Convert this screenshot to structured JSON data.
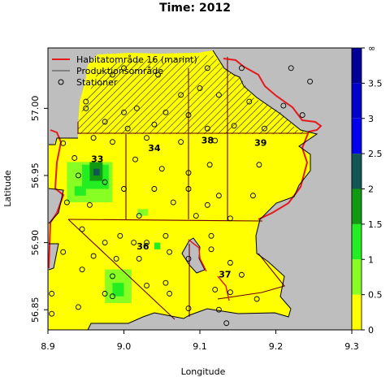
{
  "chart_data": {
    "type": "heatmap",
    "title": "Time: 2012",
    "xlabel": "Longitude",
    "ylabel": "Latitude",
    "xlim": [
      8.9,
      9.3
    ],
    "ylim": [
      56.835,
      57.045
    ],
    "x_ticks": [
      8.9,
      9.0,
      9.1,
      9.2,
      9.3
    ],
    "x_tick_labels": [
      "8.9",
      "9.0",
      "9.1",
      "9.2",
      "9.3"
    ],
    "y_ticks": [
      56.85,
      56.9,
      56.95,
      57.0
    ],
    "y_tick_labels": [
      "56.85",
      "56.90",
      "56.95",
      "57.00"
    ],
    "legend": {
      "position": "top-left",
      "items": [
        {
          "label": "Habitatområde 16 (marint)",
          "symbol": "line",
          "color": "#e41a1c"
        },
        {
          "label": "Produktionsområde",
          "symbol": "line",
          "color": "#444444"
        },
        {
          "label": "Stationer",
          "symbol": "circle",
          "color": "#000000"
        }
      ]
    },
    "colorbar": {
      "tick_labels": [
        "0",
        "0.5",
        "1",
        "1.5",
        "2",
        "2.5",
        "3",
        "3.5",
        "∞"
      ],
      "bins": [
        {
          "from": 0.0,
          "to": 0.5,
          "color": "#ffff00"
        },
        {
          "from": 0.5,
          "to": 1.0,
          "color": "#88ff22"
        },
        {
          "from": 1.0,
          "to": 1.5,
          "color": "#22ee22"
        },
        {
          "from": 1.5,
          "to": 2.0,
          "color": "#119911"
        },
        {
          "from": 2.0,
          "to": 2.5,
          "color": "#115555"
        },
        {
          "from": 2.5,
          "to": 3.0,
          "color": "#0000ee"
        },
        {
          "from": 3.0,
          "to": 3.5,
          "color": "#0000cc"
        },
        {
          "from": 3.5,
          "to": "inf",
          "color": "#000099"
        }
      ]
    },
    "area_labels": [
      {
        "text": "33",
        "x": 8.965,
        "y": 56.96
      },
      {
        "text": "34",
        "x": 9.04,
        "y": 56.968
      },
      {
        "text": "38",
        "x": 9.11,
        "y": 56.974
      },
      {
        "text": "39",
        "x": 9.18,
        "y": 56.972
      },
      {
        "text": "36",
        "x": 9.025,
        "y": 56.895
      },
      {
        "text": "37",
        "x": 9.133,
        "y": 56.874
      }
    ],
    "patches": [
      {
        "x0": 8.925,
        "x1": 8.985,
        "y0": 56.93,
        "y1": 56.96,
        "value": 0.8
      },
      {
        "x0": 8.945,
        "x1": 8.98,
        "y0": 56.94,
        "y1": 56.958,
        "value": 1.2
      },
      {
        "x0": 8.955,
        "x1": 8.972,
        "y0": 56.946,
        "y1": 56.96,
        "value": 1.7
      },
      {
        "x0": 8.96,
        "x1": 8.968,
        "y0": 56.95,
        "y1": 56.955,
        "value": 2.2
      },
      {
        "x0": 8.935,
        "x1": 8.95,
        "y0": 56.935,
        "y1": 56.942,
        "value": 1.1
      },
      {
        "x0": 9.018,
        "x1": 9.032,
        "y0": 56.92,
        "y1": 56.925,
        "value": 0.8
      },
      {
        "x0": 9.04,
        "x1": 9.048,
        "y0": 56.895,
        "y1": 56.9,
        "value": 1.1
      },
      {
        "x0": 8.975,
        "x1": 9.01,
        "y0": 56.855,
        "y1": 56.88,
        "value": 0.8
      },
      {
        "x0": 8.985,
        "x1": 9.0,
        "y0": 56.86,
        "y1": 56.87,
        "value": 1.1
      }
    ],
    "stations": [
      [
        8.95,
        57.005
      ],
      [
        8.985,
        57.025
      ],
      [
        9.0,
        57.03
      ],
      [
        9.045,
        57.025
      ],
      [
        9.11,
        57.03
      ],
      [
        9.155,
        57.03
      ],
      [
        9.22,
        57.03
      ],
      [
        9.245,
        57.02
      ],
      [
        8.95,
        57.0
      ],
      [
        9.0,
        56.997
      ],
      [
        9.017,
        57.0
      ],
      [
        9.055,
        56.997
      ],
      [
        9.075,
        57.01
      ],
      [
        9.1,
        57.015
      ],
      [
        9.125,
        57.01
      ],
      [
        9.165,
        57.005
      ],
      [
        9.21,
        57.002
      ],
      [
        8.975,
        56.99
      ],
      [
        9.005,
        56.985
      ],
      [
        9.04,
        56.988
      ],
      [
        9.085,
        56.995
      ],
      [
        9.11,
        56.985
      ],
      [
        9.145,
        56.987
      ],
      [
        9.185,
        56.985
      ],
      [
        9.235,
        56.995
      ],
      [
        8.92,
        56.974
      ],
      [
        8.96,
        56.978
      ],
      [
        8.985,
        56.975
      ],
      [
        9.03,
        56.978
      ],
      [
        9.075,
        56.975
      ],
      [
        9.12,
        56.976
      ],
      [
        8.935,
        56.963
      ],
      [
        9.015,
        56.962
      ],
      [
        9.05,
        56.955
      ],
      [
        9.085,
        56.952
      ],
      [
        9.113,
        56.958
      ],
      [
        9.178,
        56.958
      ],
      [
        8.94,
        56.95
      ],
      [
        8.975,
        56.945
      ],
      [
        9.0,
        56.94
      ],
      [
        9.04,
        56.94
      ],
      [
        9.085,
        56.94
      ],
      [
        9.125,
        56.935
      ],
      [
        9.17,
        56.935
      ],
      [
        8.925,
        56.93
      ],
      [
        8.955,
        56.928
      ],
      [
        9.065,
        56.93
      ],
      [
        9.11,
        56.928
      ],
      [
        9.02,
        56.92
      ],
      [
        9.095,
        56.92
      ],
      [
        9.14,
        56.918
      ],
      [
        8.945,
        56.91
      ],
      [
        8.995,
        56.905
      ],
      [
        9.03,
        56.9
      ],
      [
        9.055,
        56.905
      ],
      [
        9.115,
        56.905
      ],
      [
        8.975,
        56.9
      ],
      [
        9.013,
        56.9
      ],
      [
        9.06,
        56.893
      ],
      [
        9.115,
        56.895
      ],
      [
        8.92,
        56.893
      ],
      [
        8.96,
        56.89
      ],
      [
        8.99,
        56.888
      ],
      [
        9.02,
        56.888
      ],
      [
        8.985,
        56.875
      ],
      [
        9.03,
        56.868
      ],
      [
        9.055,
        56.87
      ],
      [
        8.945,
        56.88
      ],
      [
        8.975,
        56.862
      ],
      [
        9.085,
        56.888
      ],
      [
        9.14,
        56.885
      ],
      [
        9.155,
        56.876
      ],
      [
        8.905,
        56.862
      ],
      [
        8.985,
        56.86
      ],
      [
        9.06,
        56.862
      ],
      [
        9.12,
        56.865
      ],
      [
        9.14,
        56.863
      ],
      [
        8.94,
        56.852
      ],
      [
        9.085,
        56.851
      ],
      [
        9.125,
        56.85
      ],
      [
        9.175,
        56.858
      ],
      [
        8.905,
        56.847
      ],
      [
        9.135,
        56.84
      ]
    ]
  }
}
